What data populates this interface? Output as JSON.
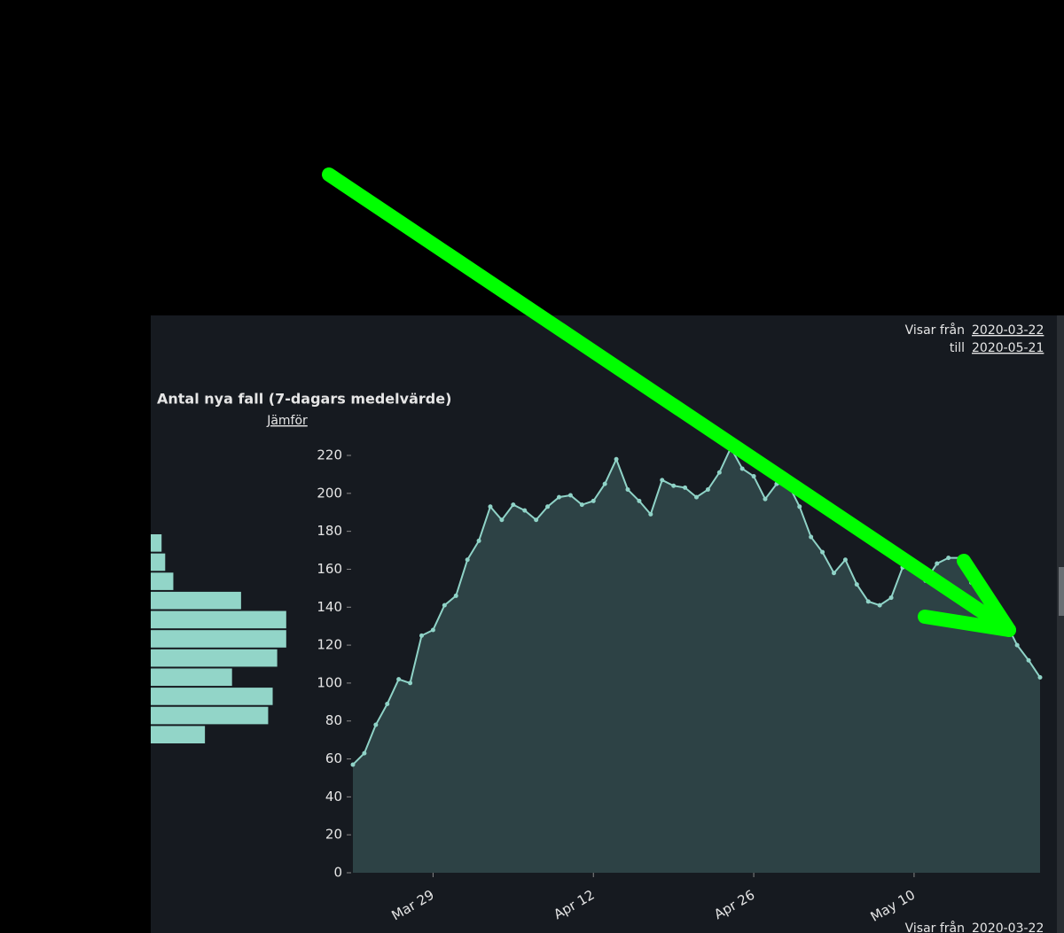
{
  "header": {
    "from_label": "Visar från",
    "from_date": "2020-03-22",
    "to_label": "till",
    "to_date": "2020-05-21"
  },
  "footer": {
    "from_label": "Visar från",
    "from_date": "2020-03-22"
  },
  "compare_link": "Jämför",
  "chart_data": [
    {
      "type": "area",
      "title": "Antal nya fall (7-dagars medelvärde)",
      "color": "#8fd3c7",
      "fill": "#2d4245",
      "x": [
        "Mar 22",
        "Mar 23",
        "Mar 24",
        "Mar 25",
        "Mar 26",
        "Mar 27",
        "Mar 28",
        "Mar 29",
        "Mar 30",
        "Mar 31",
        "Apr 1",
        "Apr 2",
        "Apr 3",
        "Apr 4",
        "Apr 5",
        "Apr 6",
        "Apr 7",
        "Apr 8",
        "Apr 9",
        "Apr 10",
        "Apr 11",
        "Apr 12",
        "Apr 13",
        "Apr 14",
        "Apr 15",
        "Apr 16",
        "Apr 17",
        "Apr 18",
        "Apr 19",
        "Apr 20",
        "Apr 21",
        "Apr 22",
        "Apr 23",
        "Apr 24",
        "Apr 25",
        "Apr 26",
        "Apr 27",
        "Apr 28",
        "Apr 29",
        "Apr 30",
        "May 1",
        "May 2",
        "May 3",
        "May 4",
        "May 5",
        "May 6",
        "May 7",
        "May 8",
        "May 9",
        "May 10",
        "May 11",
        "May 12",
        "May 13",
        "May 14",
        "May 15",
        "May 16",
        "May 17",
        "May 18",
        "May 19",
        "May 20",
        "May 21"
      ],
      "values": [
        57,
        63,
        78,
        89,
        102,
        100,
        125,
        128,
        141,
        146,
        165,
        175,
        193,
        186,
        194,
        191,
        186,
        193,
        198,
        199,
        194,
        196,
        205,
        218,
        202,
        196,
        189,
        207,
        204,
        203,
        198,
        202,
        211,
        224,
        213,
        209,
        197,
        205,
        205,
        193,
        177,
        169,
        158,
        165,
        152,
        143,
        141,
        145,
        161,
        161,
        154,
        163,
        166,
        166,
        153,
        146,
        140,
        132,
        120,
        112,
        103
      ],
      "xticks": [
        "Mar 29",
        "Apr 12",
        "Apr 26",
        "May 10"
      ],
      "ylim": [
        0,
        220
      ],
      "yticks": [
        0,
        20,
        40,
        60,
        80,
        100,
        120,
        140,
        160,
        180,
        200,
        220
      ]
    },
    {
      "type": "histogram",
      "orientation": "horizontal",
      "color": "#92d5c8",
      "bins": [
        70,
        80,
        90,
        100,
        110,
        120,
        130,
        140,
        150,
        160,
        170,
        180
      ],
      "counts": [
        6,
        13,
        13.5,
        9,
        14,
        15,
        15,
        10,
        2.5,
        1.6,
        1.2
      ],
      "xlim": [
        0,
        16
      ]
    }
  ]
}
